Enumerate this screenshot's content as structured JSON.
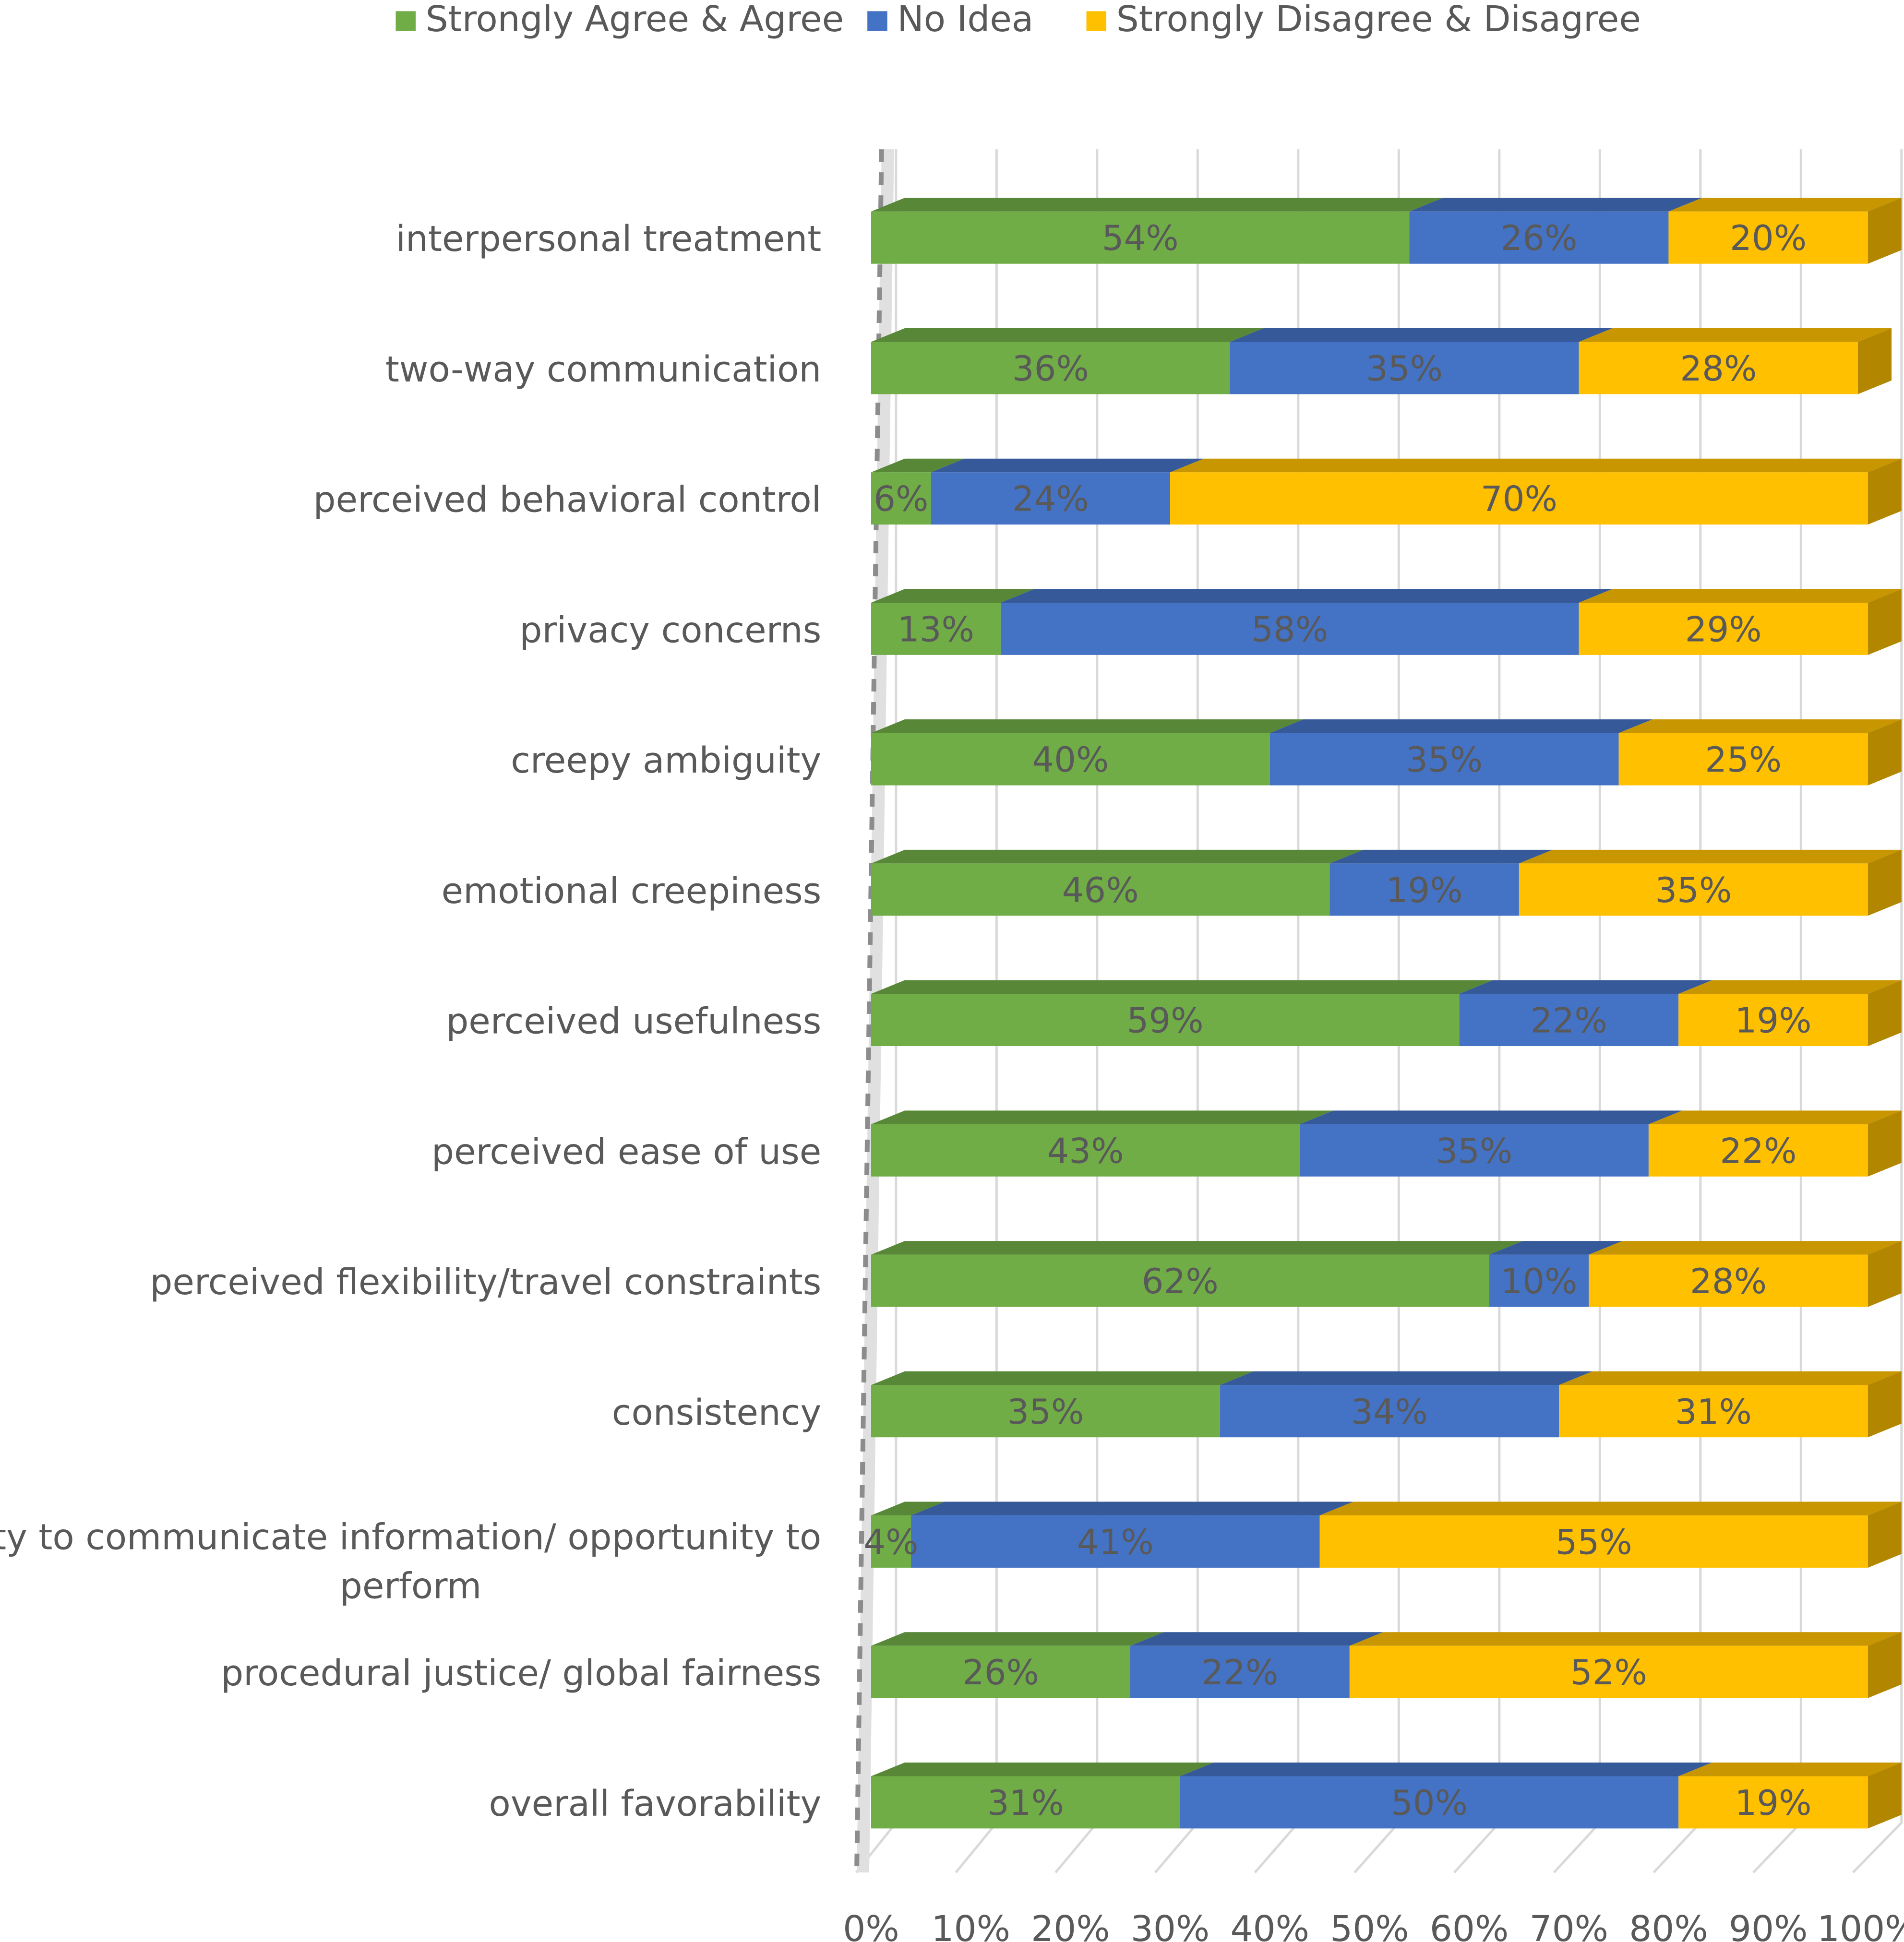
{
  "chart_data": {
    "type": "bar",
    "orientation": "horizontal",
    "stacked": true,
    "percent_stacked": true,
    "style": "3d",
    "legend_position": "top",
    "grid": true,
    "title": "",
    "xlabel": "",
    "ylabel": "",
    "xlim": [
      0,
      100
    ],
    "x_ticks": [
      "0%",
      "10%",
      "20%",
      "30%",
      "40%",
      "50%",
      "60%",
      "70%",
      "80%",
      "90%",
      "100%"
    ],
    "categories": [
      "interpersonal treatment",
      "two-way communication",
      "perceived behavioral control",
      "privacy concerns",
      "creepy ambiguity",
      "emotional creepiness",
      "perceived usefulness",
      "perceived ease of use",
      "perceived flexibility/travel constraints",
      "consistency",
      "ability to communicate information/ opportunity to perform",
      "procedural justice/ global fairness",
      "overall favorability"
    ],
    "series": [
      {
        "name": "Strongly Agree & Agree",
        "color": "#70AD47",
        "values": [
          54,
          36,
          6,
          13,
          40,
          46,
          59,
          43,
          62,
          35,
          4,
          26,
          31
        ],
        "labels": [
          "54%",
          "36%",
          "6%",
          "13%",
          "40%",
          "46%",
          "59%",
          "43%",
          "62%",
          "35%",
          "4%",
          "26%",
          "31%"
        ]
      },
      {
        "name": "No Idea",
        "color": "#4472C4",
        "values": [
          26,
          35,
          24,
          58,
          35,
          19,
          22,
          35,
          10,
          34,
          41,
          22,
          50
        ],
        "labels": [
          "26%",
          "35%",
          "24%",
          "58%",
          "35%",
          "19%",
          "22%",
          "35%",
          "10%",
          "34%",
          "41%",
          "22%",
          "50%"
        ]
      },
      {
        "name": "Strongly Disagree & Disagree",
        "color": "#FFC000",
        "values": [
          20,
          28,
          70,
          29,
          25,
          35,
          19,
          22,
          28,
          31,
          55,
          52,
          19
        ],
        "labels": [
          "20%",
          "28%",
          "70%",
          "29%",
          "25%",
          "35%",
          "19%",
          "22%",
          "28%",
          "31%",
          "55%",
          "52%",
          "19%"
        ]
      }
    ]
  }
}
